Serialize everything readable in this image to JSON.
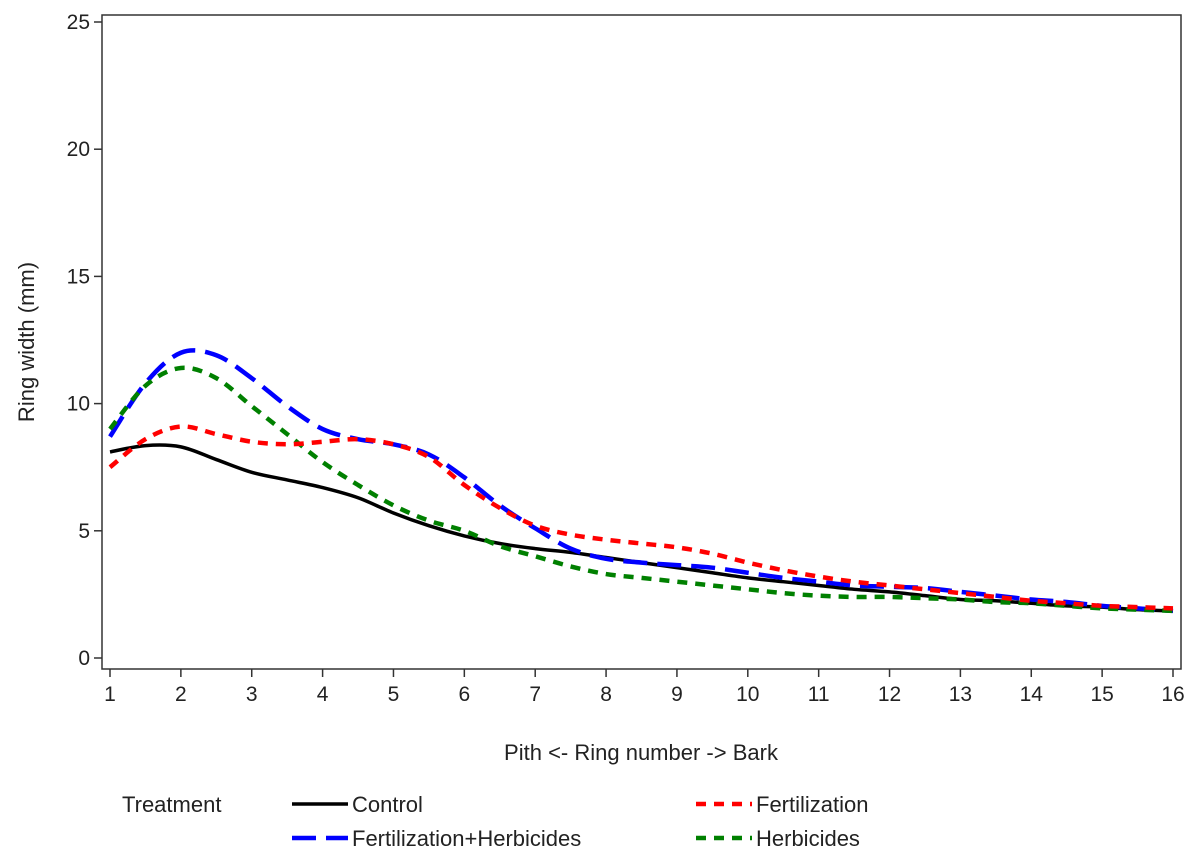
{
  "chart_data": {
    "type": "line",
    "title": "",
    "xlabel": "Pith <- Ring number -> Bark",
    "ylabel": "Ring width (mm)",
    "xlim": [
      1,
      16
    ],
    "ylim": [
      0,
      25
    ],
    "xticks": [
      "1",
      "2",
      "3",
      "4",
      "5",
      "6",
      "7",
      "8",
      "9",
      "10",
      "11",
      "12",
      "13",
      "14",
      "15",
      "16"
    ],
    "yticks": [
      "0",
      "5",
      "10",
      "15",
      "20",
      "25"
    ],
    "grid": false,
    "legend": {
      "title": "Treatment",
      "position": "bottom"
    },
    "series": [
      {
        "name": "Control",
        "color": "#000000",
        "style": "solid",
        "x": [
          1,
          1.5,
          2,
          2.5,
          3,
          3.5,
          4,
          4.5,
          5,
          5.5,
          6,
          6.5,
          7,
          7.5,
          8,
          8.5,
          9,
          9.5,
          10,
          10.5,
          11,
          11.5,
          12,
          12.5,
          13,
          13.5,
          14,
          14.5,
          15,
          15.5,
          16
        ],
        "values": [
          8.1,
          8.35,
          8.3,
          7.8,
          7.3,
          7.0,
          6.7,
          6.3,
          5.7,
          5.2,
          4.8,
          4.5,
          4.3,
          4.15,
          3.95,
          3.75,
          3.55,
          3.35,
          3.15,
          3.0,
          2.85,
          2.7,
          2.6,
          2.45,
          2.3,
          2.25,
          2.15,
          2.05,
          2.0,
          1.9,
          1.85
        ]
      },
      {
        "name": "Fertilization",
        "color": "#ff0000",
        "style": "short-dash",
        "x": [
          1,
          1.5,
          2,
          2.5,
          3,
          3.5,
          4,
          4.5,
          5,
          5.5,
          6,
          6.5,
          7,
          7.5,
          8,
          8.5,
          9,
          9.5,
          10,
          10.5,
          11,
          11.5,
          12,
          12.5,
          13,
          13.5,
          14,
          14.5,
          15,
          15.5,
          16
        ],
        "values": [
          7.5,
          8.6,
          9.1,
          8.8,
          8.5,
          8.4,
          8.5,
          8.6,
          8.4,
          7.9,
          6.8,
          5.9,
          5.2,
          4.85,
          4.65,
          4.5,
          4.35,
          4.1,
          3.75,
          3.45,
          3.2,
          3.0,
          2.85,
          2.7,
          2.55,
          2.4,
          2.25,
          2.15,
          2.05,
          2.0,
          1.95
        ]
      },
      {
        "name": "Fertilization+Herbicides",
        "color": "#0000ff",
        "style": "long-dash",
        "x": [
          1,
          1.5,
          2,
          2.5,
          3,
          3.5,
          4,
          4.5,
          5,
          5.5,
          6,
          6.5,
          7,
          7.5,
          8,
          8.5,
          9,
          9.5,
          10,
          10.5,
          11,
          11.5,
          12,
          12.5,
          13,
          13.5,
          14,
          14.5,
          15,
          15.5,
          16
        ],
        "values": [
          8.7,
          10.8,
          12.0,
          11.9,
          11.0,
          9.9,
          9.0,
          8.6,
          8.4,
          8.0,
          7.1,
          6.0,
          5.1,
          4.3,
          3.9,
          3.75,
          3.65,
          3.55,
          3.35,
          3.15,
          3.0,
          2.85,
          2.8,
          2.75,
          2.6,
          2.45,
          2.3,
          2.2,
          2.05,
          1.95,
          1.85
        ]
      },
      {
        "name": "Herbicides",
        "color": "#008000",
        "style": "short-dash",
        "x": [
          1,
          1.5,
          2,
          2.5,
          3,
          3.5,
          4,
          4.5,
          5,
          5.5,
          6,
          6.5,
          7,
          7.5,
          8,
          8.5,
          9,
          9.5,
          10,
          10.5,
          11,
          11.5,
          12,
          12.5,
          13,
          13.5,
          14,
          14.5,
          15,
          15.5,
          16
        ],
        "values": [
          9.0,
          10.7,
          11.4,
          11.0,
          9.9,
          8.8,
          7.7,
          6.8,
          6.0,
          5.4,
          5.0,
          4.4,
          4.0,
          3.6,
          3.3,
          3.15,
          3.0,
          2.85,
          2.7,
          2.55,
          2.45,
          2.4,
          2.4,
          2.35,
          2.3,
          2.2,
          2.15,
          2.05,
          1.95,
          1.9,
          1.85
        ]
      }
    ]
  }
}
